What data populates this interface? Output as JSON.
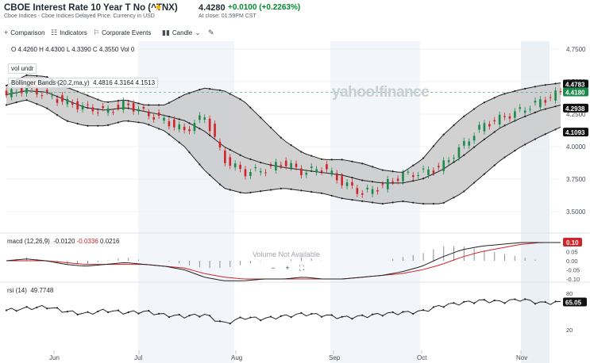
{
  "header": {
    "title": "CBOE Interest Rate 10 Year T No (^TNX)",
    "subtitle": "Cboe Indices - Cboe Indices Delayed Price. Currency in USD",
    "price": "4.4280",
    "change": "+0.0100",
    "change_pct": "(+0.2263%)",
    "close_time": "At close: 01:59PM CST"
  },
  "toolbar": {
    "comparison": "Comparison",
    "indicators": "Indicators",
    "corporate_events": "Corporate Events",
    "candle": "Candle"
  },
  "ohlc_label": "O 4.4260  H 4.4300  L 4.3390  C 4.3550  Vol 0",
  "vol_label": "vol undr",
  "bollinger_label": "Bollinger Bands (20,2,ma,y)",
  "bollinger_values": "4.4816  4.3164  4.1513",
  "macd_label": "macd (12,26,9)",
  "macd_v1": "-0.0120",
  "macd_v2": "-0.0336",
  "macd_v3": "0.0216",
  "rsi_label": "rsi (14)",
  "rsi_value": "49.7748",
  "watermark": "yahoo!finance",
  "volume_na": "Volume Not Available",
  "zoom": {
    "minus": "−",
    "plus": "+",
    "fit": "⛶"
  },
  "price_axis": [
    "4.7500",
    "4.5000",
    "4.2500",
    "4.0000",
    "3.7500",
    "3.5000"
  ],
  "price_markers": [
    "4.4783",
    "4.4180",
    "4.2938",
    "4.1093"
  ],
  "macd_axis": [
    "0.10",
    "0.05",
    "0.00",
    "-0.05",
    "-0.10"
  ],
  "macd_marker": "0.10",
  "rsi_axis": [
    "80",
    "20"
  ],
  "rsi_marker": "65.05",
  "months": [
    "Jun",
    "Jul",
    "Aug",
    "Sep",
    "Oct",
    "Nov"
  ],
  "colors": {
    "up": "#1a8a4a",
    "down": "#d0232a",
    "band": "#c9c9c9",
    "accent": "#0f69ff"
  }
}
